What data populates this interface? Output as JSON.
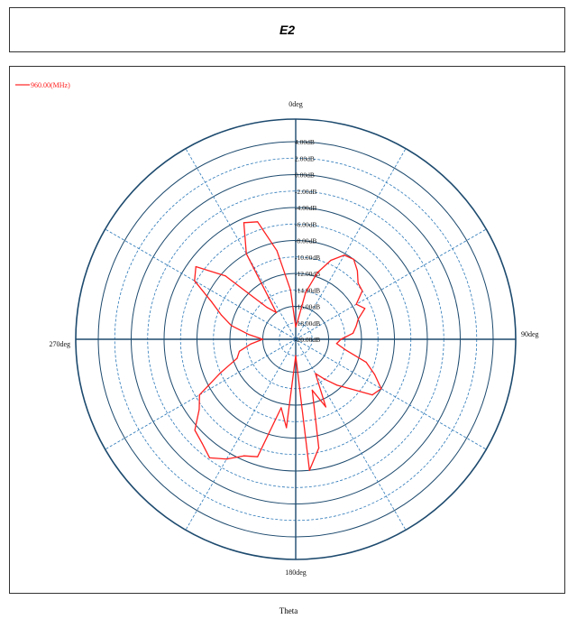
{
  "title": "E2",
  "chart_data": {
    "type": "polar",
    "angle_label": "Theta",
    "angle_ticks": [
      "0deg",
      "90deg",
      "180deg",
      "270deg"
    ],
    "radial_ticks": [
      "4.00dB",
      "2.00dB",
      "0.00dB",
      "-2.00dB",
      "-4.00dB",
      "-6.00dB",
      "-8.00dB",
      "-10.00dB",
      "-12.00dB",
      "-14.00dB",
      "-16.00dB",
      "-18.00dB",
      "-20.00dB"
    ],
    "rlim": [
      -20,
      4
    ],
    "grid": true,
    "legend_position": "top-left",
    "series": [
      {
        "name": "960.00(MHz)",
        "color": "#ff2020",
        "theta": [
          0,
          6,
          12,
          18,
          24,
          30,
          36,
          42,
          48,
          54,
          60,
          66,
          72,
          78,
          84,
          90,
          96,
          102,
          108,
          114,
          120,
          126,
          132,
          138,
          144,
          150,
          156,
          162,
          168,
          174,
          180,
          186,
          192,
          198,
          204,
          210,
          216,
          222,
          228,
          234,
          240,
          246,
          252,
          258,
          264,
          270,
          276,
          282,
          288,
          294,
          300,
          306,
          312,
          318,
          324,
          330,
          336,
          342,
          348,
          354,
          360
        ],
        "values": [
          -18.5,
          -17.8,
          -14.2,
          -11.5,
          -9.5,
          -8.2,
          -8.0,
          -8.8,
          -9.8,
          -10.0,
          -11.5,
          -10.8,
          -12.0,
          -12.5,
          -13.0,
          -14.5,
          -15.0,
          -13.8,
          -11.0,
          -9.5,
          -8.0,
          -8.5,
          -11.0,
          -12.5,
          -14.0,
          -15.2,
          -11.0,
          -13.5,
          -6.5,
          -4.0,
          -18.0,
          -9.2,
          -11.5,
          -5.0,
          -4.5,
          -3.2,
          -2.2,
          -3.0,
          -3.5,
          -5.5,
          -6.5,
          -10.0,
          -12.5,
          -13.0,
          -14.5,
          -16.0,
          -14.2,
          -12.0,
          -10.5,
          -8.8,
          -5.8,
          -5.0,
          -8.5,
          -14.8,
          -16.0,
          -8.0,
          -4.5,
          -5.0,
          -9.0,
          -14.0,
          -18.5
        ]
      }
    ]
  }
}
